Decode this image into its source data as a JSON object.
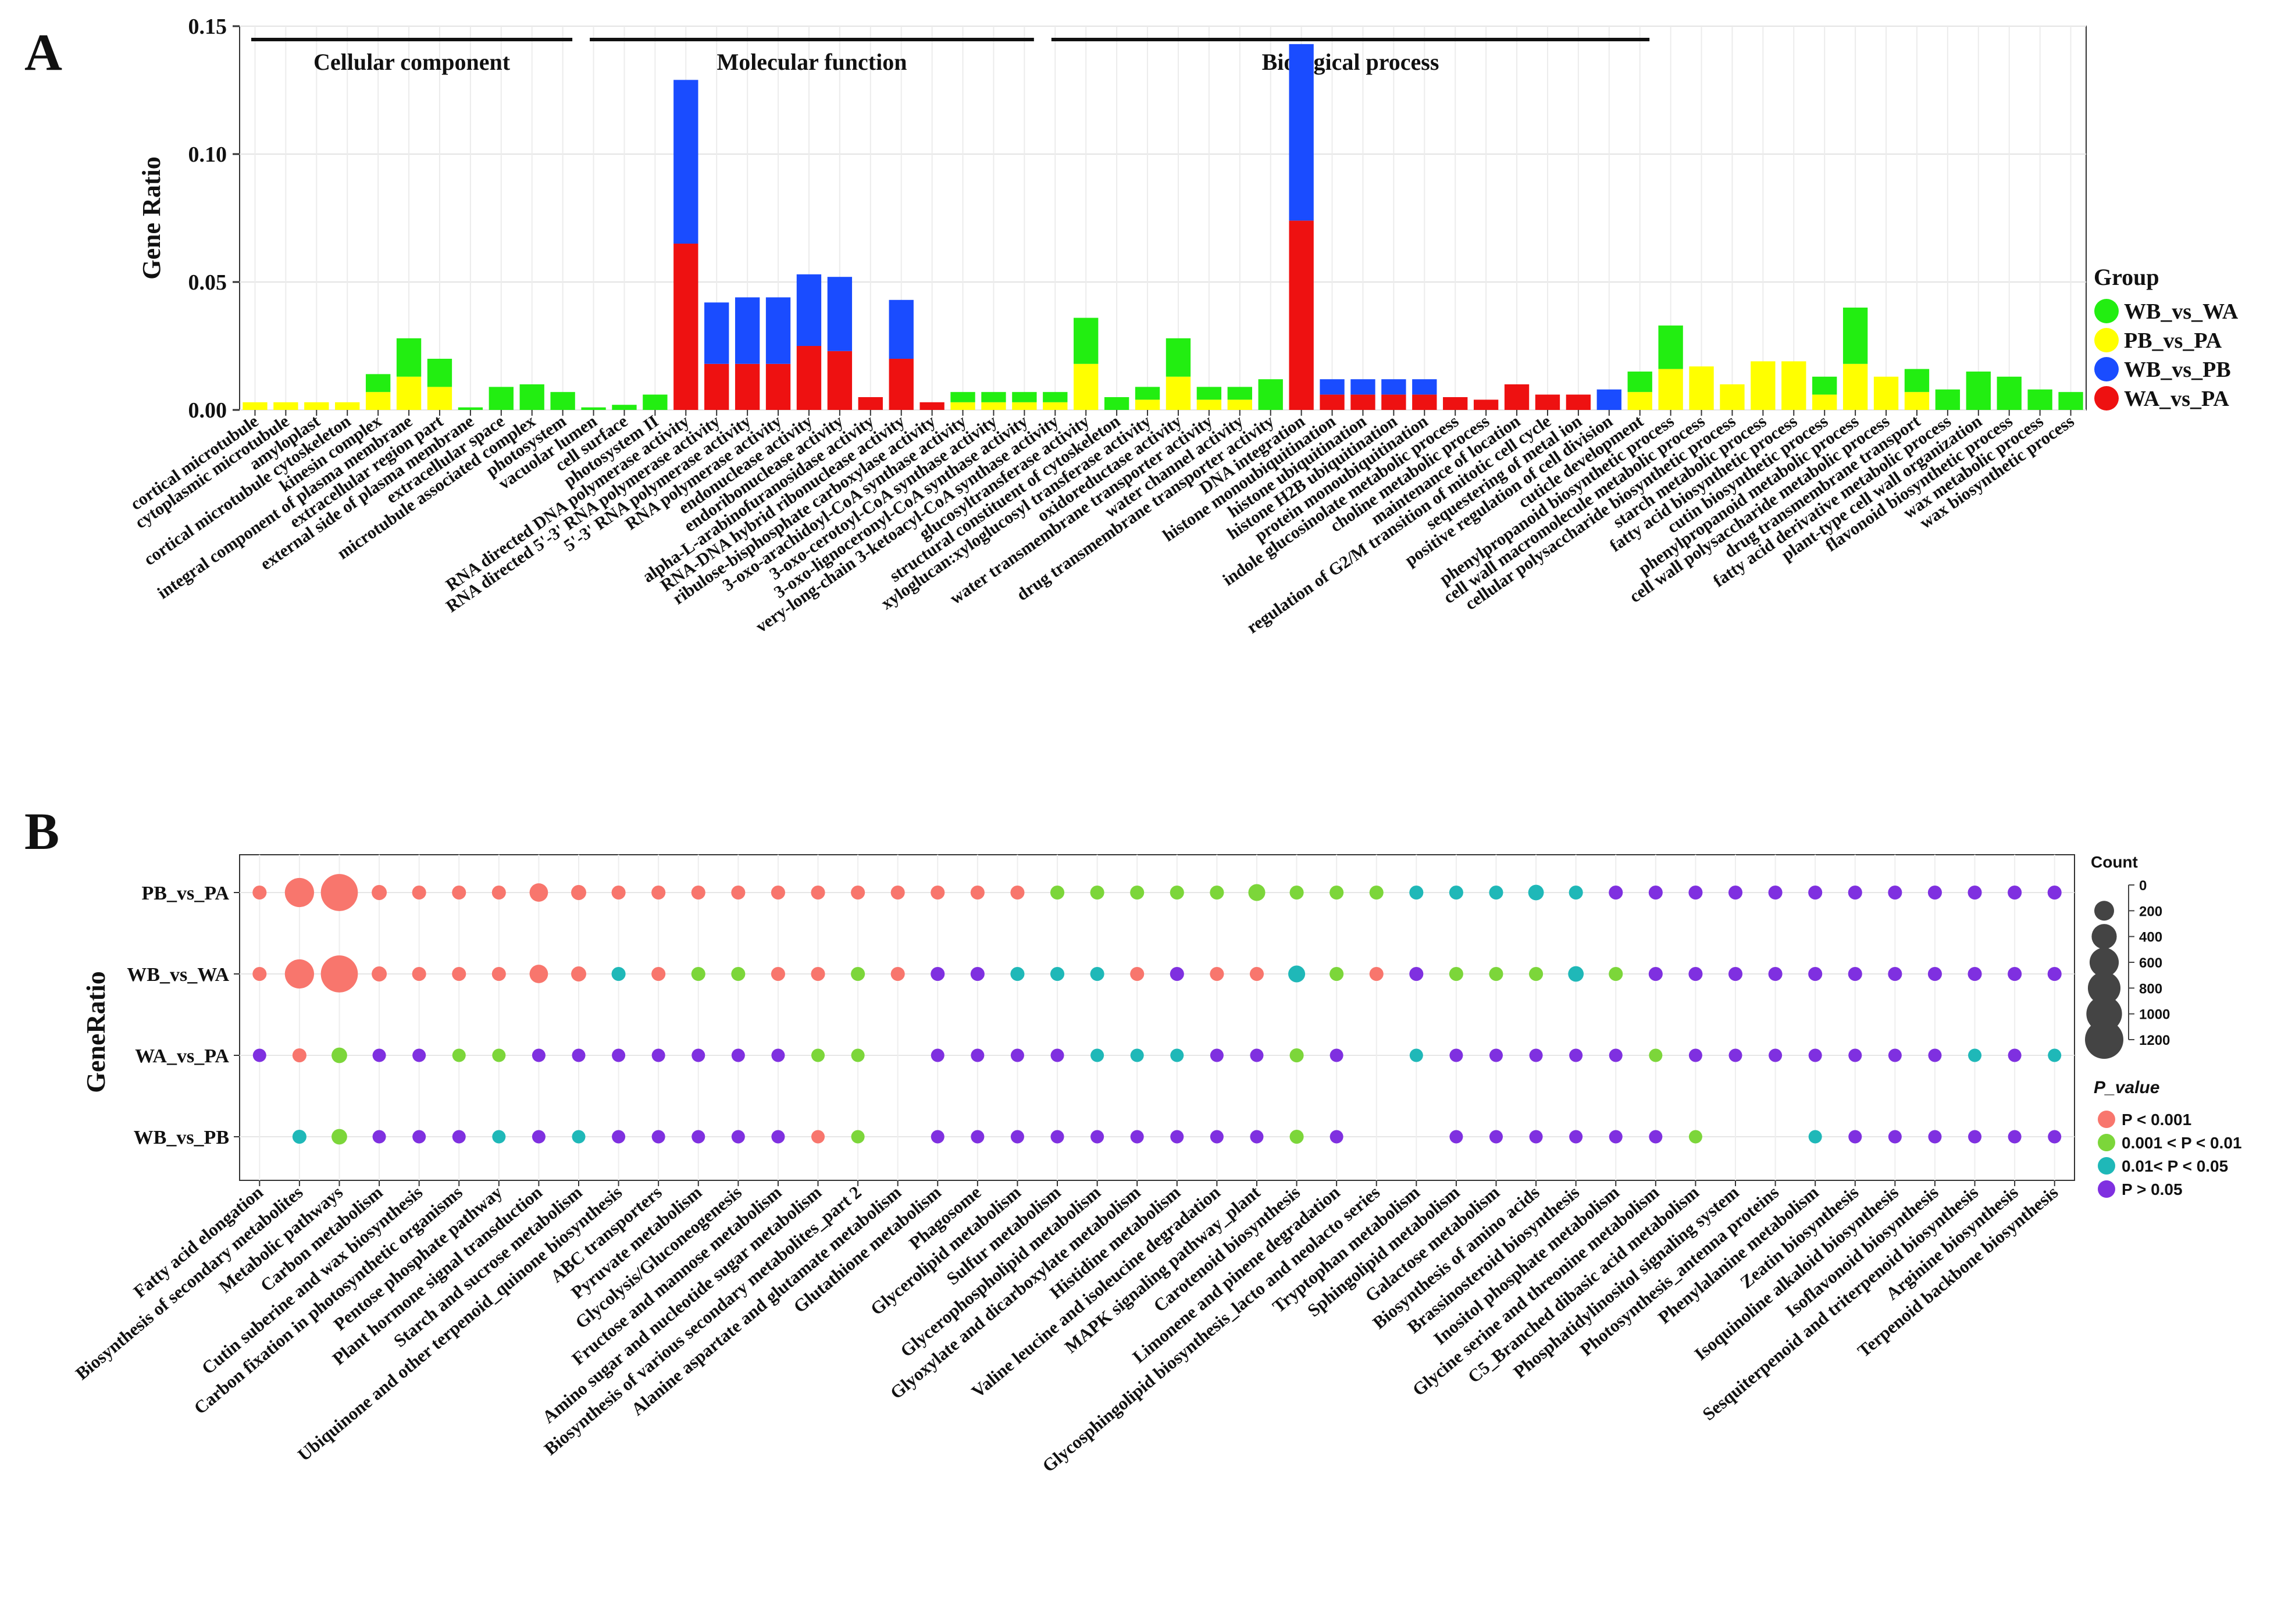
{
  "panels": {
    "a": "A",
    "b": "B"
  },
  "chart_data": [
    {
      "type": "bar",
      "stacked": true,
      "ylabel": "Gene Ratio",
      "ylim": [
        0,
        0.15
      ],
      "yticks": [
        "0.00",
        "0.05",
        "0.10",
        "0.15"
      ],
      "ytick_values": [
        0,
        0.05,
        0.1,
        0.15
      ],
      "sections": [
        {
          "label": "Cellular component",
          "from": 0,
          "to": 10
        },
        {
          "label": "Molecular function",
          "from": 11,
          "to": 25
        },
        {
          "label": "Biological process",
          "from": 26,
          "to": 45
        }
      ],
      "legend": {
        "title": "Group",
        "entries": [
          {
            "name": "WB_vs_WA",
            "color": "#22ee11"
          },
          {
            "name": "PB_vs_PA",
            "color": "#ffff00"
          },
          {
            "name": "WB_vs_PB",
            "color": "#1a4cff"
          },
          {
            "name": "WA_vs_PA",
            "color": "#ee1111"
          }
        ]
      },
      "series_order": [
        "WA_vs_PA",
        "WB_vs_PB",
        "PB_vs_PA",
        "WB_vs_WA"
      ],
      "series_colors": {
        "WA_vs_PA": "#ee1111",
        "WB_vs_PB": "#1a4cff",
        "PB_vs_PA": "#ffff00",
        "WB_vs_WA": "#22ee11"
      },
      "categories": [
        "cortical microtubule",
        "cytoplasmic microtubule",
        "amyloplast",
        "cortical microtubule cytoskeleton",
        "kinesin complex",
        "integral component of plasma membrane",
        "extracellular region part",
        "external side of plasma membrane",
        "extracellular space",
        "microtubule associated complex",
        "photosystem",
        "vacuolar lumen",
        "cell surface",
        "photosystem II",
        "RNA directed DNA polymerase activity",
        "RNA directed 5'-3' RNA polymerase activity",
        "5'-3' RNA polymerase activity",
        "RNA polymerase activity",
        "endonuclease activity",
        "endoribonuclease activity",
        "alpha-L-arabinofuranosidase activity",
        "RNA-DNA hybrid ribonuclease activity",
        "ribulose-bisphosphate carboxylase activity",
        "3-oxo-arachidoyl-CoA synthase activity",
        "3-oxo-cerotoyl-CoA synthase activity",
        "3-oxo-lignoceronyl-CoA synthase activity",
        "very-long-chain 3-ketoacyl-CoA synthase activity",
        "glucosyltransferase activity",
        "structural constituent of cytoskeleton",
        "xyloglucan:xyloglucosyl transferase activity",
        "oxidoreductase activity",
        "water transmembrane transporter activity",
        "water channel activity",
        "drug transmembrane transporter activity",
        "DNA integration",
        "histone monoubiquitination",
        "histone ubiquitination",
        "histone H2B ubiquitination",
        "protein monoubiquitination",
        "indole glucosinolate metabolic process",
        "choline metabolic process",
        "maintenance of location",
        "regulation of G2/M transition of mitotic cell cycle",
        "sequestering of metal ion",
        "positive regulation of cell division",
        "cuticle development",
        "phenylpropanoid biosynthetic process",
        "cell wall macromolecule metabolic process",
        "cellular polysaccharide biosynthetic process",
        "starch metabolic process",
        "fatty acid biosynthetic process",
        "cutin biosynthetic process",
        "phenylpropanoid metabolic process",
        "cell wall polysaccharide metabolic process",
        "drug transmembrane transport",
        "fatty acid derivative metabolic process",
        "plant-type cell wall organization",
        "flavonoid biosynthetic process",
        "wax metabolic process",
        "wax biosynthetic process"
      ],
      "series": [
        {
          "name": "WA_vs_PA",
          "values": [
            0,
            0,
            0,
            0,
            0,
            0,
            0,
            0,
            0,
            0,
            0,
            0,
            0,
            0,
            0.065,
            0.018,
            0.018,
            0.018,
            0.025,
            0.023,
            0.005,
            0.02,
            0.003,
            0,
            0,
            0,
            0,
            0,
            0,
            0,
            0,
            0,
            0,
            0,
            0.074,
            0.006,
            0.006,
            0.006,
            0.006,
            0.005,
            0.004,
            0.01,
            0.006,
            0.006,
            0,
            0,
            0,
            0,
            0,
            0,
            0,
            0,
            0,
            0,
            0,
            0,
            0,
            0,
            0,
            0
          ]
        },
        {
          "name": "WB_vs_PB",
          "values": [
            0,
            0,
            0,
            0,
            0,
            0,
            0,
            0,
            0,
            0,
            0,
            0,
            0,
            0,
            0.064,
            0.024,
            0.026,
            0.026,
            0.028,
            0.029,
            0,
            0.023,
            0,
            0,
            0,
            0,
            0,
            0,
            0,
            0,
            0,
            0,
            0,
            0,
            0.069,
            0.006,
            0.006,
            0.006,
            0.006,
            0,
            0,
            0,
            0,
            0,
            0.008,
            0,
            0,
            0,
            0,
            0,
            0,
            0,
            0,
            0,
            0,
            0,
            0,
            0,
            0,
            0
          ]
        },
        {
          "name": "PB_vs_PA",
          "values": [
            0.003,
            0.003,
            0.003,
            0.003,
            0.007,
            0.013,
            0.009,
            0,
            0,
            0,
            0,
            0,
            0,
            0,
            0,
            0,
            0,
            0,
            0,
            0,
            0,
            0,
            0,
            0.003,
            0.003,
            0.003,
            0.003,
            0.018,
            0,
            0.004,
            0.013,
            0.004,
            0.004,
            0,
            0,
            0,
            0,
            0,
            0,
            0,
            0,
            0,
            0,
            0,
            0,
            0.007,
            0.016,
            0.017,
            0.01,
            0.019,
            0.019,
            0.006,
            0.018,
            0.013,
            0.007,
            0,
            0,
            0,
            0,
            0
          ]
        },
        {
          "name": "WB_vs_WA",
          "values": [
            0,
            0,
            0,
            0,
            0.007,
            0.015,
            0.011,
            0.001,
            0.009,
            0.01,
            0.007,
            0.001,
            0.002,
            0.006,
            0,
            0,
            0,
            0,
            0,
            0,
            0,
            0,
            0,
            0.004,
            0.004,
            0.004,
            0.004,
            0.018,
            0.005,
            0.005,
            0.015,
            0.005,
            0.005,
            0.012,
            0,
            0,
            0,
            0,
            0,
            0,
            0,
            0,
            0,
            0,
            0,
            0.008,
            0.017,
            0,
            0,
            0,
            0,
            0.007,
            0.022,
            0,
            0.009,
            0.008,
            0.015,
            0.013,
            0.008,
            0.007
          ]
        }
      ]
    },
    {
      "type": "scatter",
      "subtype": "dot-plot",
      "ylabel": "GeneRatio",
      "rows": [
        "PB_vs_PA",
        "WB_vs_WA",
        "WA_vs_PA",
        "WB_vs_PB"
      ],
      "categories": [
        "Fatty acid elongation",
        "Biosynthesis of secondary metabolites",
        "Metabolic pathways",
        "Carbon metabolism",
        "Cutin suberine and wax biosynthesis",
        "Carbon fixation in photosynthetic organisms",
        "Pentose phosphate pathway",
        "Plant hormone signal transduction",
        "Starch and sucrose metabolism",
        "Ubiquinone and other terpenoid_quinone biosynthesis",
        "ABC transporters",
        "Pyruvate metabolism",
        "Glycolysis/Gluconeogenesis",
        "Fructose and mannose metabolism",
        "Amino sugar and nucleotide sugar metabolism",
        "Biosynthesis of various secondary metabolites_part 2",
        "Alanine aspartate and glutamate metabolism",
        "Glutathione metabolism",
        "Phagosome",
        "Glycerolipid metabolism",
        "Sulfur metabolism",
        "Glycerophospholipid metabolism",
        "Glyoxylate and dicarboxylate metabolism",
        "Histidine metabolism",
        "Valine leucine and isoleucine degradation",
        "MAPK signaling pathway_plant",
        "Carotenoid biosynthesis",
        "Limonene and pinene degradation",
        "Glycosphingolipid biosynthesis_lacto and neolacto series",
        "Tryptophan metabolism",
        "Sphingolipid metabolism",
        "Galactose metabolism",
        "Biosynthesis of amino acids",
        "Brassinosteroid biosynthesis",
        "Inositol phosphate metabolism",
        "Glycine serine and threonine metabolism",
        "C5_Branched dibasic acid metabolism",
        "Phosphatidylinositol signaling system",
        "Photosynthesis_antenna proteins",
        "Phenylalanine metabolism",
        "Zeatin biosynthesis",
        "Isoquinoline alkaloid biosynthesis",
        "Isoflavonoid biosynthesis",
        "Sesquiterpenoid and triterpenoid biosynthesis",
        "Arginine biosynthesis",
        "Terpenoid backbone biosynthesis"
      ],
      "size_legend": {
        "title": "Count",
        "values": [
          0,
          200,
          400,
          600,
          800,
          1000,
          1200
        ]
      },
      "color_legend": {
        "title": "P_value",
        "entries": [
          {
            "label": "P < 0.001",
            "color": "#f8766d",
            "code": "r"
          },
          {
            "label": "0.001 < P < 0.01",
            "color": "#7cd63a",
            "code": "g"
          },
          {
            "label": "0.01< P < 0.05",
            "color": "#1fb8b8",
            "code": "t"
          },
          {
            "label": "P > 0.05",
            "color": "#7f30e0",
            "code": "p"
          }
        ]
      },
      "points": {
        "PB_vs_PA": {
          "p": [
            "r",
            "r",
            "r",
            "r",
            "r",
            "r",
            "r",
            "r",
            "r",
            "r",
            "r",
            "r",
            "r",
            "r",
            "r",
            "r",
            "r",
            "r",
            "r",
            "r",
            "g",
            "g",
            "g",
            "g",
            "g",
            "g",
            "g",
            "g",
            "g",
            "t",
            "t",
            "t",
            "t",
            "t",
            "p",
            "p",
            "p",
            "p",
            "p",
            "p",
            "p",
            "p",
            "p",
            "p",
            "p",
            "p"
          ],
          "count": [
            60,
            600,
            1100,
            80,
            60,
            60,
            60,
            160,
            80,
            60,
            60,
            60,
            60,
            60,
            60,
            60,
            60,
            60,
            60,
            60,
            60,
            60,
            60,
            60,
            60,
            120,
            60,
            60,
            60,
            60,
            60,
            60,
            90,
            60,
            60,
            60,
            60,
            60,
            60,
            60,
            60,
            60,
            60,
            60,
            60,
            60
          ]
        },
        "WB_vs_WA": {
          "p": [
            "r",
            "r",
            "r",
            "r",
            "r",
            "r",
            "r",
            "r",
            "r",
            "t",
            "r",
            "g",
            "g",
            "r",
            "r",
            "g",
            "r",
            "p",
            "p",
            "t",
            "t",
            "t",
            "r",
            "p",
            "r",
            "r",
            "t",
            "g",
            "r",
            "p",
            "g",
            "g",
            "g",
            "t",
            "g",
            "p",
            "p",
            "p",
            "p",
            "p",
            "p",
            "p",
            "p",
            "p",
            "p",
            "p"
          ],
          "count": [
            60,
            600,
            1100,
            80,
            60,
            60,
            60,
            160,
            80,
            60,
            60,
            60,
            60,
            60,
            60,
            60,
            60,
            60,
            60,
            60,
            60,
            60,
            60,
            60,
            60,
            60,
            120,
            60,
            60,
            60,
            60,
            60,
            60,
            90,
            60,
            60,
            60,
            60,
            60,
            60,
            60,
            60,
            60,
            60,
            60,
            60
          ]
        },
        "WA_vs_PA": {
          "p": [
            "p",
            "r",
            "g",
            "p",
            "p",
            "g",
            "g",
            "p",
            "p",
            "p",
            "p",
            "p",
            "p",
            "p",
            "g",
            "g",
            "n",
            "p",
            "p",
            "p",
            "p",
            "t",
            "t",
            "t",
            "p",
            "p",
            "g",
            "p",
            "n",
            "t",
            "p",
            "p",
            "p",
            "p",
            "p",
            "g",
            "p",
            "p",
            "p",
            "p",
            "p",
            "p",
            "p",
            "t",
            "p",
            "t"
          ],
          "count": [
            50,
            60,
            90,
            50,
            50,
            50,
            50,
            50,
            50,
            50,
            50,
            50,
            50,
            50,
            50,
            50,
            0,
            50,
            50,
            50,
            50,
            50,
            50,
            50,
            50,
            50,
            60,
            50,
            0,
            50,
            50,
            50,
            50,
            50,
            50,
            50,
            50,
            50,
            50,
            50,
            50,
            50,
            50,
            50,
            50,
            50
          ]
        },
        "WB_vs_PB": {
          "p": [
            "n",
            "t",
            "g",
            "p",
            "p",
            "p",
            "t",
            "p",
            "t",
            "p",
            "p",
            "p",
            "p",
            "p",
            "r",
            "g",
            "n",
            "p",
            "p",
            "p",
            "p",
            "p",
            "p",
            "p",
            "p",
            "p",
            "g",
            "p",
            "n",
            "n",
            "p",
            "p",
            "p",
            "p",
            "p",
            "p",
            "g",
            "n",
            "n",
            "t",
            "p",
            "p",
            "p",
            "p",
            "p",
            "p"
          ],
          "count": [
            0,
            60,
            90,
            50,
            50,
            50,
            50,
            50,
            50,
            50,
            50,
            50,
            50,
            50,
            50,
            50,
            0,
            50,
            50,
            50,
            50,
            50,
            50,
            50,
            50,
            50,
            60,
            50,
            0,
            0,
            50,
            50,
            50,
            50,
            50,
            50,
            50,
            0,
            0,
            50,
            50,
            50,
            50,
            50,
            50,
            50
          ]
        }
      }
    }
  ]
}
